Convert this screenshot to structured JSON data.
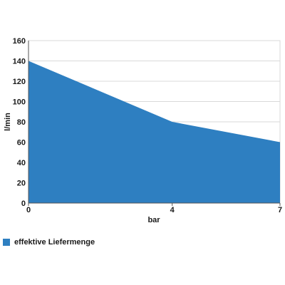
{
  "chart_data": {
    "type": "area",
    "x": [
      0,
      4,
      7
    ],
    "x_tick_labels": [
      "0",
      "4",
      "7"
    ],
    "xlabel": "bar",
    "ylabel": "l/min",
    "xlim": [
      0,
      7
    ],
    "ylim": [
      0,
      160
    ],
    "y_ticks": [
      0,
      20,
      40,
      60,
      80,
      100,
      120,
      140,
      160
    ],
    "grid": "horizontal",
    "legend": "bottom-left",
    "series": [
      {
        "name": "effektive Liefermenge",
        "values": [
          140,
          80,
          60
        ],
        "color": "#2e7fc1"
      }
    ]
  }
}
